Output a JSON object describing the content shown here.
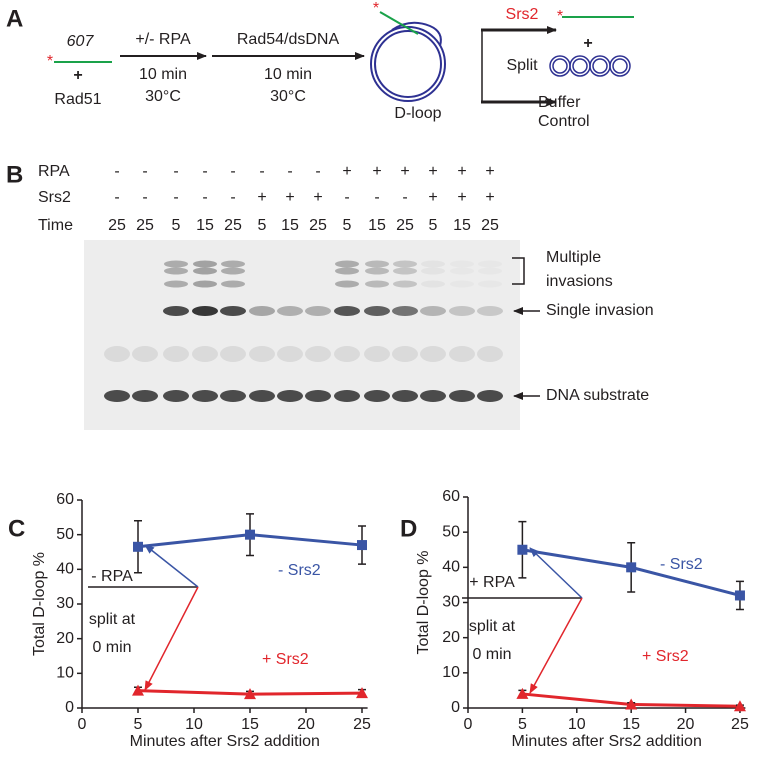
{
  "panel_a": {
    "label": "A",
    "substrate": "607",
    "plus": "+",
    "protein": "Rad51",
    "step1": {
      "top": "+/- RPA",
      "time": "10 min",
      "temp": "30°C"
    },
    "step2": {
      "top": "Rad54/dsDNA",
      "time": "10 min",
      "temp": "30°C"
    },
    "product": "D-loop",
    "treatment": "Srs2",
    "split": "Split",
    "plus2": "+",
    "control": [
      "Buffer",
      "Control"
    ]
  },
  "panel_b": {
    "label": "B",
    "rows": [
      {
        "name": "RPA",
        "values": [
          "-",
          "-",
          "-",
          "-",
          "-",
          "-",
          "-",
          "-",
          "+",
          "+",
          "+",
          "+",
          "+",
          "+"
        ]
      },
      {
        "name": "Srs2",
        "values": [
          "-",
          "-",
          "-",
          "-",
          "-",
          "+",
          "+",
          "+",
          "-",
          "-",
          "-",
          "+",
          "+",
          "+"
        ]
      },
      {
        "name": "Time",
        "values": [
          25,
          25,
          5,
          15,
          25,
          5,
          15,
          25,
          5,
          15,
          25,
          5,
          15,
          25
        ]
      }
    ],
    "annotations": [
      "Multiple",
      "invasions",
      "Single invasion",
      "DNA substrate"
    ]
  },
  "chart_data": [
    {
      "type": "line",
      "panel": "C",
      "xlabel": "Minutes after Srs2 addition",
      "ylabel": "Total D-loop %",
      "x": [
        5,
        15,
        25
      ],
      "xlim": [
        0,
        25.5
      ],
      "xticks": [
        0,
        5,
        10,
        15,
        20,
        25
      ],
      "ylim": [
        0,
        60
      ],
      "yticks": [
        0,
        10,
        20,
        30,
        40,
        50,
        60
      ],
      "series": [
        {
          "name": "- Srs2",
          "color": "#3a55a5",
          "marker": "square",
          "values": [
            46.5,
            50,
            47
          ],
          "errors": [
            7.5,
            6,
            5.5
          ]
        },
        {
          "name": "+ Srs2",
          "color": "#e1262c",
          "marker": "triangle",
          "values": [
            5,
            4,
            4.3
          ],
          "errors": [
            1,
            0.8,
            1
          ]
        }
      ],
      "annotations": [
        "- RPA",
        "split at",
        "0 min"
      ]
    },
    {
      "type": "line",
      "panel": "D",
      "xlabel": "Minutes after Srs2 addition",
      "ylabel": "Total D-loop %",
      "x": [
        5,
        15,
        25
      ],
      "xlim": [
        0,
        25.5
      ],
      "xticks": [
        0,
        5,
        10,
        15,
        20,
        25
      ],
      "ylim": [
        0,
        60
      ],
      "yticks": [
        0,
        10,
        20,
        30,
        40,
        50,
        60
      ],
      "series": [
        {
          "name": "- Srs2",
          "color": "#3a55a5",
          "marker": "square",
          "values": [
            45,
            40,
            32
          ],
          "errors": [
            8,
            7,
            4
          ]
        },
        {
          "name": "+ Srs2",
          "color": "#e1262c",
          "marker": "triangle",
          "values": [
            4,
            1,
            0.5
          ],
          "errors": [
            1,
            0.5,
            0.3
          ]
        }
      ],
      "annotations": [
        "+ RPA",
        "split at",
        "0 min"
      ]
    }
  ]
}
